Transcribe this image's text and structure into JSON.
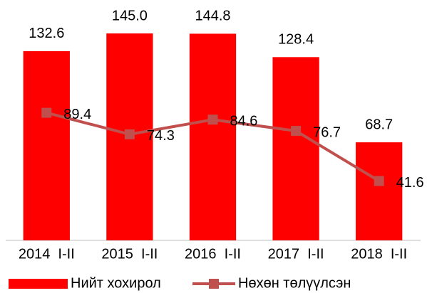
{
  "chart_data": {
    "type": "bar",
    "categories": [
      "2014  I-II",
      "2015  I-II",
      "2016  I-II",
      "2017  I-II",
      "2018  I-II"
    ],
    "series": [
      {
        "name": "Нийт хохирол",
        "color": "#ff0000",
        "type": "bar",
        "values": [
          132.6,
          145.0,
          144.8,
          128.4,
          68.7
        ],
        "value_labels": [
          "132.6",
          "145.0",
          "144.8",
          "128.4",
          "68.7"
        ]
      },
      {
        "name": "Нөхөн төлүүлсэн",
        "color": "#c0504d",
        "type": "line",
        "values": [
          89.4,
          74.3,
          84.6,
          76.7,
          41.6
        ],
        "value_labels": [
          "89.4",
          "74.3",
          "84.6",
          "76.7",
          "41.6"
        ]
      }
    ],
    "ylim": [
      0,
      145
    ],
    "legend": "bottom"
  }
}
